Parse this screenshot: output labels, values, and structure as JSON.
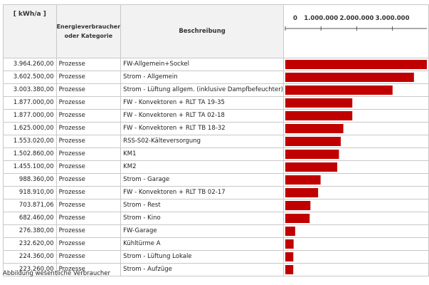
{
  "chart_data": {
    "type": "bar",
    "orientation": "horizontal",
    "headers": {
      "unit": "[ kWh/a ]",
      "category": "Energieverbraucher oder Kategorie",
      "description": "Beschreibung"
    },
    "axis_ticks": [
      "0",
      "1.000.000",
      "2.000.000",
      "3.000.000"
    ],
    "axis_tick_values": [
      0,
      1000000,
      2000000,
      3000000
    ],
    "xlim": [
      0,
      3964260
    ],
    "bar_color": "#c00000",
    "rows": [
      {
        "value_label": "3.964.260,00",
        "value": 3964260.0,
        "category": "Prozesse",
        "description": "FW-Allgemein+Sockel"
      },
      {
        "value_label": "3.602.500,00",
        "value": 3602500.0,
        "category": "Prozesse",
        "description": "Strom - Allgemein"
      },
      {
        "value_label": "3.003.380,00",
        "value": 3003380.0,
        "category": "Prozesse",
        "description": "Strom - Lüftung allgem. (inklusive Dampfbefeuchter)"
      },
      {
        "value_label": "1.877.000,00",
        "value": 1877000.0,
        "category": "Prozesse",
        "description": "FW - Konvektoren + RLT TA 19-35"
      },
      {
        "value_label": "1.877.000,00",
        "value": 1877000.0,
        "category": "Prozesse",
        "description": "FW - Konvektoren + RLT TA 02-18"
      },
      {
        "value_label": "1.625.000,00",
        "value": 1625000.0,
        "category": "Prozesse",
        "description": "FW - Konvektoren + RLT TB 18-32"
      },
      {
        "value_label": "1.553.020,00",
        "value": 1553020.0,
        "category": "Prozesse",
        "description": "RSS-S02-Kälteversorgung"
      },
      {
        "value_label": "1.502.860,00",
        "value": 1502860.0,
        "category": "Prozesse",
        "description": "KM1"
      },
      {
        "value_label": "1.455.100,00",
        "value": 1455100.0,
        "category": "Prozesse",
        "description": "KM2"
      },
      {
        "value_label": "988.360,00",
        "value": 988360.0,
        "category": "Prozesse",
        "description": "Strom - Garage"
      },
      {
        "value_label": "918.910,00",
        "value": 918910.0,
        "category": "Prozesse",
        "description": "FW - Konvektoren + RLT TB 02-17"
      },
      {
        "value_label": "703.871,06",
        "value": 703871.06,
        "category": "Prozesse",
        "description": "Strom - Rest"
      },
      {
        "value_label": "682.460,00",
        "value": 682460.0,
        "category": "Prozesse",
        "description": "Strom - Kino"
      },
      {
        "value_label": "276.380,00",
        "value": 276380.0,
        "category": "Prozesse",
        "description": "FW-Garage"
      },
      {
        "value_label": "232.620,00",
        "value": 232620.0,
        "category": "Prozesse",
        "description": "Kühltürme A"
      },
      {
        "value_label": "224.360,00",
        "value": 224360.0,
        "category": "Prozesse",
        "description": "Strom - Lüftung Lokale"
      },
      {
        "value_label": "223.260,00",
        "value": 223260.0,
        "category": "Prozesse",
        "description": "Strom - Aufzüge"
      }
    ],
    "caption": "Abbildung wesentliche Verbraucher"
  }
}
